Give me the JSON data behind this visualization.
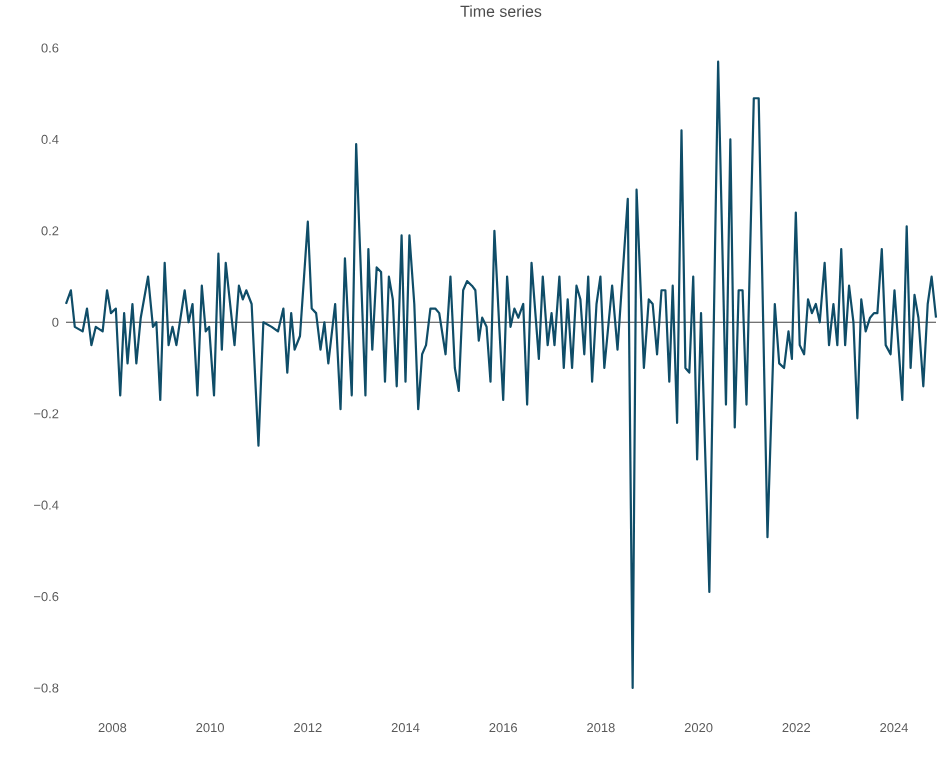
{
  "chart_data": {
    "type": "line",
    "title": "Time series",
    "x": [
      2007.05,
      2007.15,
      2007.23,
      2007.39,
      2007.48,
      2007.57,
      2007.66,
      2007.8,
      2007.89,
      2007.97,
      2008.07,
      2008.16,
      2008.24,
      2008.31,
      2008.41,
      2008.49,
      2008.58,
      2008.73,
      2008.83,
      2008.9,
      2008.98,
      2009.07,
      2009.15,
      2009.23,
      2009.31,
      2009.48,
      2009.56,
      2009.64,
      2009.74,
      2009.83,
      2009.91,
      2009.98,
      2010.08,
      2010.17,
      2010.24,
      2010.32,
      2010.5,
      2010.59,
      2010.67,
      2010.74,
      2010.85,
      2010.99,
      2011.09,
      2011.26,
      2011.39,
      2011.5,
      2011.58,
      2011.66,
      2011.73,
      2011.84,
      2012.0,
      2012.08,
      2012.17,
      2012.26,
      2012.34,
      2012.42,
      2012.56,
      2012.67,
      2012.76,
      2012.9,
      2012.99,
      2013.18,
      2013.24,
      2013.32,
      2013.41,
      2013.5,
      2013.58,
      2013.66,
      2013.74,
      2013.82,
      2013.92,
      2014.0,
      2014.08,
      2014.18,
      2014.26,
      2014.34,
      2014.42,
      2014.51,
      2014.61,
      2014.69,
      2014.82,
      2014.92,
      2015.01,
      2015.09,
      2015.18,
      2015.26,
      2015.36,
      2015.43,
      2015.5,
      2015.57,
      2015.66,
      2015.74,
      2015.82,
      2015.92,
      2016.0,
      2016.08,
      2016.15,
      2016.23,
      2016.31,
      2016.41,
      2016.49,
      2016.58,
      2016.73,
      2016.81,
      2016.91,
      2016.99,
      2017.05,
      2017.15,
      2017.24,
      2017.32,
      2017.41,
      2017.5,
      2017.58,
      2017.66,
      2017.74,
      2017.82,
      2017.91,
      2017.99,
      2018.07,
      2018.23,
      2018.34,
      2018.55,
      2018.65,
      2018.73,
      2018.88,
      2018.98,
      2019.06,
      2019.15,
      2019.24,
      2019.32,
      2019.4,
      2019.47,
      2019.56,
      2019.65,
      2019.73,
      2019.81,
      2019.89,
      2019.97,
      2020.05,
      2020.22,
      2020.4,
      2020.56,
      2020.65,
      2020.74,
      2020.82,
      2020.9,
      2020.98,
      2021.13,
      2021.23,
      2021.41,
      2021.56,
      2021.65,
      2021.75,
      2021.84,
      2021.91,
      2021.99,
      2022.07,
      2022.16,
      2022.24,
      2022.32,
      2022.4,
      2022.48,
      2022.58,
      2022.67,
      2022.76,
      2022.84,
      2022.92,
      2023.0,
      2023.08,
      2023.17,
      2023.25,
      2023.33,
      2023.42,
      2023.51,
      2023.59,
      2023.66,
      2023.75,
      2023.83,
      2023.93,
      2024.01,
      2024.17,
      2024.26,
      2024.34,
      2024.42,
      2024.5,
      2024.6,
      2024.69,
      2024.77,
      2024.86
    ],
    "series": [
      {
        "color": "#0f4d68",
        "values": [
          0.04,
          0.07,
          -0.01,
          -0.02,
          0.03,
          -0.05,
          -0.01,
          -0.02,
          0.07,
          0.02,
          0.03,
          -0.16,
          0.02,
          -0.09,
          0.04,
          -0.09,
          0.01,
          0.1,
          -0.01,
          0.0,
          -0.17,
          0.13,
          -0.05,
          -0.01,
          -0.05,
          0.07,
          0.0,
          0.04,
          -0.16,
          0.08,
          -0.02,
          -0.01,
          -0.16,
          0.15,
          -0.06,
          0.13,
          -0.05,
          0.08,
          0.05,
          0.07,
          0.04,
          -0.27,
          0.0,
          -0.01,
          -0.02,
          0.03,
          -0.11,
          0.02,
          -0.06,
          -0.03,
          0.22,
          0.03,
          0.02,
          -0.06,
          0.0,
          -0.09,
          0.04,
          -0.19,
          0.14,
          -0.16,
          0.39,
          -0.16,
          0.16,
          -0.06,
          0.12,
          0.11,
          -0.13,
          0.1,
          0.05,
          -0.14,
          0.19,
          -0.13,
          0.19,
          0.04,
          -0.19,
          -0.07,
          -0.05,
          0.03,
          0.03,
          0.02,
          -0.07,
          0.1,
          -0.1,
          -0.15,
          0.07,
          0.09,
          0.08,
          0.07,
          -0.04,
          0.01,
          -0.01,
          -0.13,
          0.2,
          -0.01,
          -0.17,
          0.1,
          -0.01,
          0.03,
          0.01,
          0.04,
          -0.18,
          0.13,
          -0.08,
          0.1,
          -0.05,
          0.02,
          -0.05,
          0.1,
          -0.1,
          0.05,
          -0.1,
          0.08,
          0.05,
          -0.07,
          0.1,
          -0.13,
          0.04,
          0.1,
          -0.1,
          0.08,
          -0.06,
          0.27,
          -0.8,
          0.29,
          -0.1,
          0.05,
          0.04,
          -0.07,
          0.07,
          0.07,
          -0.13,
          0.08,
          -0.22,
          0.42,
          -0.1,
          -0.11,
          0.1,
          -0.3,
          0.02,
          -0.59,
          0.57,
          -0.18,
          0.4,
          -0.23,
          0.07,
          0.07,
          -0.18,
          0.49,
          0.49,
          -0.47,
          0.04,
          -0.09,
          -0.1,
          -0.02,
          -0.08,
          0.24,
          -0.05,
          -0.07,
          0.05,
          0.02,
          0.04,
          0.0,
          0.13,
          -0.05,
          0.04,
          -0.05,
          0.16,
          -0.05,
          0.08,
          0.0,
          -0.21,
          0.05,
          -0.02,
          0.01,
          0.02,
          0.02,
          0.16,
          -0.05,
          -0.07,
          0.07,
          -0.17,
          0.21,
          -0.1,
          0.06,
          0.01,
          -0.14,
          0.04,
          0.1,
          0.01
        ]
      }
    ],
    "xlim": [
      2007.05,
      2024.86
    ],
    "ylim": [
      -0.8,
      0.6
    ],
    "xticks": [
      2008,
      2010,
      2012,
      2014,
      2016,
      2018,
      2020,
      2022,
      2024
    ],
    "yticks": [
      {
        "value": -0.8,
        "label": "−0.8"
      },
      {
        "value": -0.6,
        "label": "−0.6"
      },
      {
        "value": -0.4,
        "label": "−0.4"
      },
      {
        "value": -0.2,
        "label": "−0.2"
      },
      0,
      0.2,
      0.4,
      0.6
    ],
    "ref_lines": [
      {
        "axis": "y",
        "value": 0,
        "color": "#444444"
      }
    ],
    "marker": "none",
    "line_style": "solid"
  }
}
